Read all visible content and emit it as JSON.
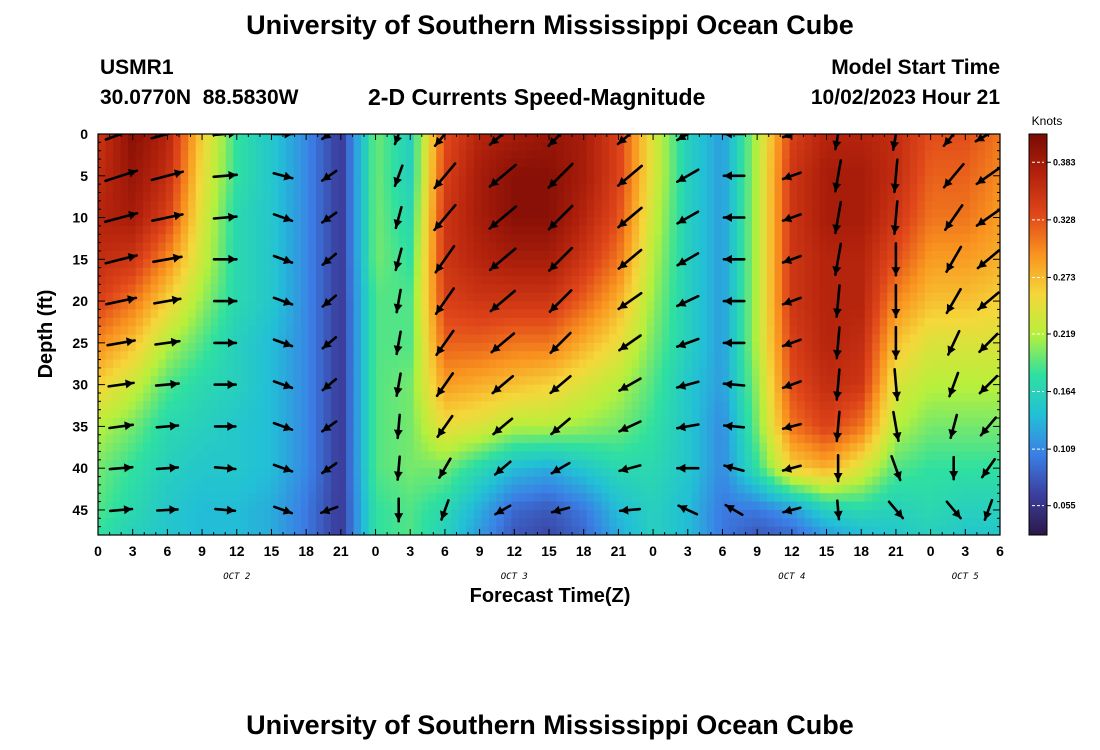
{
  "page": {
    "title": "University of Southern Mississippi Ocean Cube",
    "bottom_title": "University of Southern Mississippi Ocean Cube",
    "station": "USMR1",
    "coords": "30.0770N  88.5830W",
    "subtitle": "2-D Currents Speed-Magnitude",
    "model_start_label": "Model Start Time",
    "model_start_value": "10/02/2023 Hour 21"
  },
  "colors": {
    "speed_scale": [
      "#2b1847",
      "#3b3f9e",
      "#3b7fe6",
      "#22c0d6",
      "#2fe0a0",
      "#b6f03c",
      "#f5d73a",
      "#f9931f",
      "#e0461a",
      "#b3220c",
      "#7a0a04"
    ],
    "arrow": "#000000",
    "axis": "#000000"
  },
  "chart_data": {
    "type": "heatmap",
    "title": "2-D Currents Speed-Magnitude",
    "xlabel": "Forecast Time(Z)",
    "ylabel": "Depth (ft)",
    "x_tick_labels": [
      "0",
      "3",
      "6",
      "9",
      "12",
      "15",
      "18",
      "21",
      "0",
      "3",
      "6",
      "9",
      "12",
      "15",
      "18",
      "21",
      "0",
      "3",
      "6",
      "9",
      "12",
      "15",
      "18",
      "21",
      "0",
      "3",
      "6"
    ],
    "x_range_hours": [
      0,
      78
    ],
    "date_labels": [
      {
        "label": "OCT 2",
        "at_hour": 12
      },
      {
        "label": "OCT 3",
        "at_hour": 36
      },
      {
        "label": "OCT 4",
        "at_hour": 60
      },
      {
        "label": "OCT 5",
        "at_hour": 75
      }
    ],
    "y_ticks": [
      0,
      5,
      10,
      15,
      20,
      25,
      30,
      35,
      40,
      45
    ],
    "ylim": [
      0,
      48
    ],
    "y_inverted": true,
    "colorbar": {
      "unit": "Knots",
      "range": [
        0.027,
        0.41
      ],
      "tick_values": [
        0.055,
        0.109,
        0.164,
        0.219,
        0.273,
        0.328,
        0.383
      ],
      "tick_labels": [
        "0.055",
        "0.109",
        "0.164",
        "0.219",
        "0.273",
        "0.328",
        "0.383"
      ]
    },
    "speed_grid": {
      "units": "knots",
      "hours": [
        0,
        3,
        6,
        9,
        12,
        15,
        18,
        21,
        24,
        27,
        30,
        33,
        36,
        39,
        42,
        45,
        48,
        51,
        54,
        57,
        60,
        63,
        66,
        69,
        72,
        75,
        78
      ],
      "depths_ft": [
        0,
        5,
        10,
        15,
        20,
        25,
        30,
        35,
        40,
        45,
        48
      ],
      "values": [
        [
          0.35,
          0.4,
          0.37,
          0.26,
          0.18,
          0.15,
          0.11,
          0.06,
          0.2,
          0.16,
          0.33,
          0.37,
          0.38,
          0.39,
          0.38,
          0.34,
          0.24,
          0.16,
          0.12,
          0.22,
          0.34,
          0.37,
          0.37,
          0.36,
          0.33,
          0.33,
          0.31
        ],
        [
          0.36,
          0.39,
          0.36,
          0.25,
          0.18,
          0.15,
          0.11,
          0.06,
          0.2,
          0.16,
          0.34,
          0.38,
          0.4,
          0.4,
          0.38,
          0.34,
          0.24,
          0.16,
          0.12,
          0.22,
          0.35,
          0.38,
          0.38,
          0.36,
          0.32,
          0.32,
          0.3
        ],
        [
          0.37,
          0.38,
          0.34,
          0.24,
          0.17,
          0.15,
          0.11,
          0.06,
          0.2,
          0.17,
          0.35,
          0.38,
          0.4,
          0.4,
          0.37,
          0.33,
          0.23,
          0.16,
          0.12,
          0.22,
          0.35,
          0.38,
          0.38,
          0.35,
          0.31,
          0.31,
          0.29
        ],
        [
          0.36,
          0.35,
          0.3,
          0.23,
          0.17,
          0.15,
          0.11,
          0.06,
          0.2,
          0.18,
          0.35,
          0.37,
          0.38,
          0.38,
          0.35,
          0.31,
          0.22,
          0.16,
          0.12,
          0.22,
          0.35,
          0.37,
          0.37,
          0.33,
          0.29,
          0.29,
          0.28
        ],
        [
          0.34,
          0.31,
          0.26,
          0.21,
          0.17,
          0.15,
          0.11,
          0.06,
          0.19,
          0.19,
          0.34,
          0.35,
          0.35,
          0.35,
          0.32,
          0.28,
          0.21,
          0.16,
          0.12,
          0.22,
          0.35,
          0.37,
          0.37,
          0.3,
          0.27,
          0.27,
          0.26
        ],
        [
          0.3,
          0.27,
          0.22,
          0.19,
          0.16,
          0.14,
          0.11,
          0.06,
          0.19,
          0.19,
          0.32,
          0.32,
          0.31,
          0.31,
          0.28,
          0.25,
          0.2,
          0.16,
          0.12,
          0.22,
          0.34,
          0.37,
          0.36,
          0.27,
          0.24,
          0.24,
          0.24
        ],
        [
          0.26,
          0.23,
          0.19,
          0.17,
          0.16,
          0.14,
          0.11,
          0.06,
          0.19,
          0.2,
          0.29,
          0.28,
          0.27,
          0.26,
          0.24,
          0.22,
          0.19,
          0.15,
          0.12,
          0.21,
          0.33,
          0.36,
          0.35,
          0.24,
          0.22,
          0.22,
          0.22
        ],
        [
          0.22,
          0.2,
          0.17,
          0.16,
          0.15,
          0.14,
          0.11,
          0.06,
          0.19,
          0.2,
          0.25,
          0.24,
          0.22,
          0.22,
          0.21,
          0.2,
          0.18,
          0.15,
          0.11,
          0.2,
          0.31,
          0.34,
          0.31,
          0.22,
          0.2,
          0.2,
          0.2
        ],
        [
          0.2,
          0.18,
          0.16,
          0.15,
          0.15,
          0.14,
          0.11,
          0.06,
          0.19,
          0.2,
          0.2,
          0.17,
          0.14,
          0.13,
          0.15,
          0.17,
          0.17,
          0.15,
          0.11,
          0.18,
          0.26,
          0.28,
          0.24,
          0.19,
          0.18,
          0.18,
          0.18
        ],
        [
          0.19,
          0.17,
          0.15,
          0.14,
          0.14,
          0.13,
          0.1,
          0.06,
          0.18,
          0.19,
          0.17,
          0.13,
          0.09,
          0.08,
          0.1,
          0.14,
          0.16,
          0.14,
          0.1,
          0.1,
          0.12,
          0.16,
          0.17,
          0.16,
          0.17,
          0.16,
          0.16
        ],
        [
          0.18,
          0.16,
          0.15,
          0.14,
          0.14,
          0.13,
          0.1,
          0.06,
          0.18,
          0.19,
          0.16,
          0.12,
          0.08,
          0.07,
          0.09,
          0.13,
          0.16,
          0.14,
          0.1,
          0.08,
          0.09,
          0.12,
          0.14,
          0.15,
          0.16,
          0.15,
          0.15
        ]
      ]
    },
    "vectors": {
      "hours": [
        2,
        6,
        11,
        16,
        20,
        26,
        30,
        35,
        40,
        46,
        51,
        55,
        60,
        64,
        69,
        74,
        77
      ],
      "depths_ft": [
        0,
        5,
        10,
        15,
        20,
        25,
        30,
        35,
        40,
        45
      ],
      "angle_deg": [
        [
          20,
          15,
          5,
          0,
          215,
          250,
          230,
          220,
          225,
          220,
          210,
          180,
          200,
          260,
          260,
          230,
          210
        ],
        [
          18,
          15,
          5,
          345,
          215,
          250,
          230,
          220,
          225,
          220,
          210,
          180,
          200,
          260,
          265,
          230,
          215
        ],
        [
          15,
          12,
          5,
          340,
          215,
          255,
          230,
          220,
          225,
          220,
          210,
          180,
          200,
          260,
          265,
          235,
          215
        ],
        [
          14,
          10,
          0,
          340,
          220,
          255,
          235,
          220,
          225,
          220,
          210,
          180,
          200,
          260,
          270,
          240,
          220
        ],
        [
          12,
          10,
          0,
          340,
          220,
          260,
          235,
          220,
          225,
          215,
          205,
          180,
          200,
          265,
          270,
          240,
          220
        ],
        [
          10,
          8,
          0,
          340,
          220,
          260,
          235,
          220,
          225,
          215,
          200,
          180,
          200,
          265,
          270,
          245,
          225
        ],
        [
          8,
          5,
          0,
          340,
          220,
          260,
          235,
          220,
          220,
          210,
          195,
          175,
          200,
          265,
          275,
          250,
          225
        ],
        [
          8,
          5,
          0,
          340,
          215,
          265,
          235,
          220,
          220,
          205,
          190,
          175,
          195,
          265,
          280,
          255,
          230
        ],
        [
          5,
          4,
          355,
          340,
          215,
          265,
          240,
          220,
          210,
          195,
          180,
          165,
          195,
          270,
          290,
          270,
          235
        ],
        [
          5,
          3,
          355,
          340,
          200,
          270,
          250,
          210,
          195,
          185,
          155,
          150,
          195,
          275,
          310,
          310,
          250
        ]
      ],
      "magnitude_kn": [
        [
          0.37,
          0.37,
          0.2,
          0.13,
          0.09,
          0.17,
          0.34,
          0.38,
          0.39,
          0.35,
          0.22,
          0.15,
          0.12,
          0.34,
          0.36,
          0.34,
          0.31
        ],
        [
          0.38,
          0.36,
          0.2,
          0.13,
          0.09,
          0.17,
          0.36,
          0.39,
          0.39,
          0.34,
          0.22,
          0.15,
          0.12,
          0.35,
          0.37,
          0.33,
          0.3
        ],
        [
          0.38,
          0.34,
          0.19,
          0.13,
          0.09,
          0.17,
          0.37,
          0.4,
          0.38,
          0.33,
          0.21,
          0.15,
          0.12,
          0.35,
          0.37,
          0.32,
          0.29
        ],
        [
          0.36,
          0.3,
          0.19,
          0.13,
          0.09,
          0.18,
          0.36,
          0.38,
          0.36,
          0.31,
          0.21,
          0.15,
          0.12,
          0.35,
          0.36,
          0.3,
          0.28
        ],
        [
          0.33,
          0.26,
          0.18,
          0.13,
          0.09,
          0.19,
          0.34,
          0.35,
          0.33,
          0.28,
          0.2,
          0.15,
          0.12,
          0.35,
          0.36,
          0.28,
          0.26
        ],
        [
          0.28,
          0.22,
          0.17,
          0.13,
          0.09,
          0.19,
          0.31,
          0.31,
          0.29,
          0.25,
          0.19,
          0.15,
          0.12,
          0.34,
          0.35,
          0.25,
          0.24
        ],
        [
          0.24,
          0.19,
          0.16,
          0.13,
          0.09,
          0.19,
          0.28,
          0.26,
          0.25,
          0.22,
          0.18,
          0.15,
          0.12,
          0.33,
          0.34,
          0.23,
          0.22
        ],
        [
          0.21,
          0.17,
          0.15,
          0.13,
          0.09,
          0.2,
          0.24,
          0.22,
          0.21,
          0.2,
          0.17,
          0.14,
          0.11,
          0.31,
          0.31,
          0.21,
          0.2
        ],
        [
          0.19,
          0.16,
          0.15,
          0.13,
          0.09,
          0.2,
          0.18,
          0.14,
          0.15,
          0.17,
          0.16,
          0.14,
          0.11,
          0.25,
          0.24,
          0.18,
          0.18
        ],
        [
          0.18,
          0.15,
          0.14,
          0.12,
          0.09,
          0.19,
          0.15,
          0.09,
          0.1,
          0.14,
          0.15,
          0.13,
          0.1,
          0.12,
          0.17,
          0.17,
          0.16
        ]
      ]
    },
    "grid": false,
    "legend": "colorbar-right"
  }
}
